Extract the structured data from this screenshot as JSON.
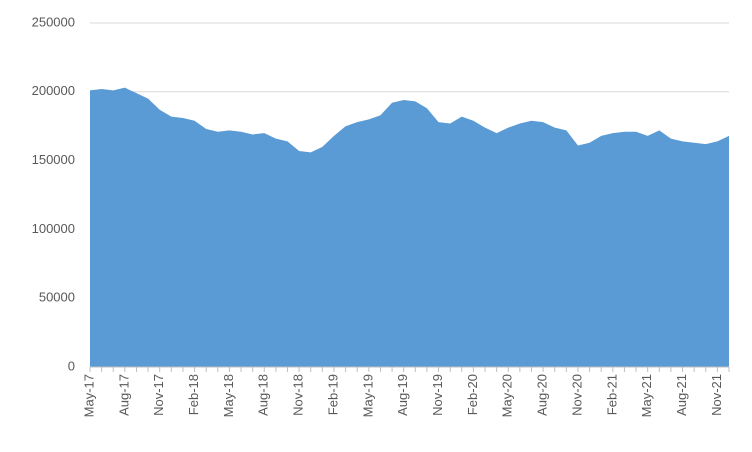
{
  "chart_data": {
    "type": "area",
    "color": "#5b9bd5",
    "grid": true,
    "categories": [
      "May-17",
      null,
      null,
      "Aug-17",
      null,
      null,
      "Nov-17",
      null,
      null,
      "Feb-18",
      null,
      null,
      "May-18",
      null,
      null,
      "Aug-18",
      null,
      null,
      "Nov-18",
      null,
      null,
      "Feb-19",
      null,
      null,
      "May-19",
      null,
      null,
      "Aug-19",
      null,
      null,
      "Nov-19",
      null,
      null,
      "Feb-20",
      null,
      null,
      "May-20",
      null,
      null,
      "Aug-20",
      null,
      null,
      "Nov-20",
      null,
      null,
      "Feb-21",
      null,
      null,
      "May-21",
      null,
      null,
      "Aug-21",
      null,
      null,
      "Nov-21",
      null
    ],
    "values": [
      201000,
      202000,
      201000,
      203000,
      199000,
      195000,
      187000,
      182000,
      181000,
      179000,
      173000,
      171000,
      172000,
      171000,
      169000,
      170000,
      166000,
      164000,
      157000,
      156000,
      160000,
      168000,
      175000,
      178000,
      180000,
      183000,
      192000,
      194000,
      193000,
      188000,
      178000,
      177000,
      182000,
      179000,
      174000,
      170000,
      174000,
      177000,
      179000,
      178000,
      174000,
      172000,
      161000,
      163000,
      168000,
      170000,
      171000,
      171000,
      168000,
      172000,
      166000,
      164000,
      163000,
      162000,
      164000,
      168000
    ],
    "ylim": [
      0,
      250000
    ],
    "yticks": [
      0,
      50000,
      100000,
      150000,
      200000,
      250000
    ]
  }
}
